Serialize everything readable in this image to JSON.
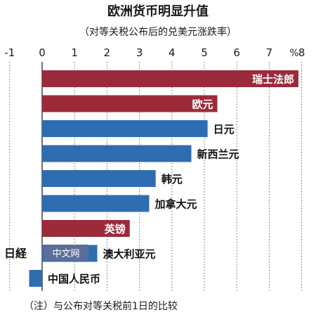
{
  "title": "欧洲货币明显升值",
  "subtitle": "（对等关税公布后的兑美元涨跌率）",
  "unit": "%",
  "footnote": "（注）与公布对等关税前1日的比较",
  "watermark": {
    "logo": "日経",
    "text": "中文网"
  },
  "colors": {
    "europe": "#9b2b3a",
    "other": "#2f6db3",
    "grid": "#555555"
  },
  "chart_data": {
    "type": "bar",
    "orientation": "horizontal",
    "xlim": [
      -1,
      8
    ],
    "ticks": [
      -1,
      0,
      1,
      2,
      3,
      4,
      5,
      6,
      7,
      8
    ],
    "grid": true,
    "categories": [
      "瑞士法郎",
      "欧元",
      "日元",
      "新西兰元",
      "韩元",
      "加拿大元",
      "英镑",
      "澳大利亚元",
      "中国人民币"
    ],
    "values": [
      7.9,
      5.4,
      5.1,
      4.6,
      3.5,
      3.3,
      2.7,
      1.7,
      -0.4
    ],
    "groups": [
      "europe",
      "europe",
      "other",
      "other",
      "other",
      "other",
      "europe",
      "other",
      "other"
    ]
  }
}
